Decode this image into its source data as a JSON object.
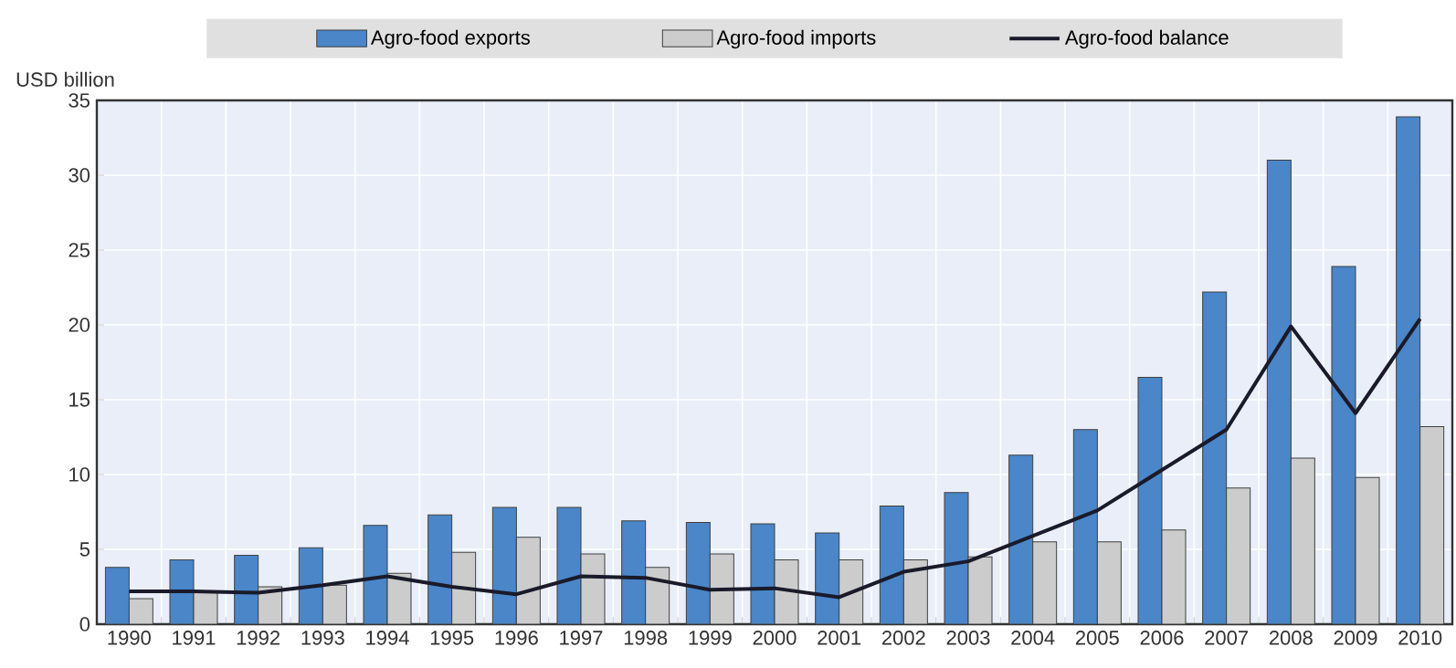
{
  "chart_data": {
    "type": "bar",
    "ylabel": "USD billion",
    "categories": [
      "1990",
      "1991",
      "1992",
      "1993",
      "1994",
      "1995",
      "1996",
      "1997",
      "1998",
      "1999",
      "2000",
      "2001",
      "2002",
      "2003",
      "2004",
      "2005",
      "2006",
      "2007",
      "2008",
      "2009",
      "2010"
    ],
    "series": [
      {
        "name": "Agro-food exports",
        "color": "#4a86c8",
        "values": [
          3.8,
          4.3,
          4.6,
          5.1,
          6.6,
          7.3,
          7.8,
          7.8,
          6.9,
          6.8,
          6.7,
          6.1,
          7.9,
          8.8,
          11.3,
          13.0,
          16.5,
          22.2,
          31.0,
          23.9,
          33.9
        ]
      },
      {
        "name": "Agro-food imports",
        "color": "#cccccc",
        "values": [
          1.7,
          2.2,
          2.5,
          2.6,
          3.4,
          4.8,
          5.8,
          4.7,
          3.8,
          4.7,
          4.3,
          4.3,
          4.3,
          4.5,
          5.5,
          5.5,
          6.3,
          9.1,
          11.1,
          9.8,
          13.2
        ]
      },
      {
        "name": "Agro-food balance",
        "type": "line",
        "color": "#1a1a2a",
        "values": [
          2.2,
          2.2,
          2.1,
          2.6,
          3.2,
          2.5,
          2.0,
          3.2,
          3.1,
          2.3,
          2.4,
          1.8,
          3.5,
          4.2,
          5.9,
          7.6,
          10.3,
          13.0,
          19.9,
          14.1,
          20.4
        ]
      }
    ],
    "ylim": [
      0,
      35
    ],
    "yticks": [
      0,
      5,
      10,
      15,
      20,
      25,
      30,
      35
    ],
    "grid": true,
    "legend": "top"
  }
}
